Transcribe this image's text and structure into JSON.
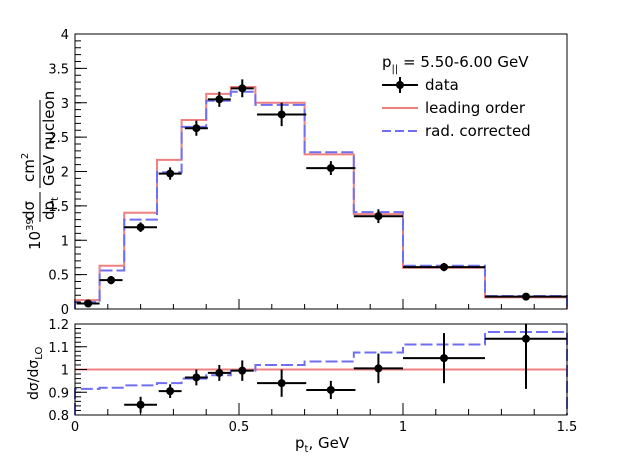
{
  "chart_data": [
    {
      "type": "line",
      "panel": "main",
      "title": "",
      "xlabel": "",
      "ylabel": "10^39 dσ/dp_t  cm²/GeV nucleon",
      "xlim": [
        0,
        1.5
      ],
      "ylim": [
        0,
        4
      ],
      "legend": {
        "header": "p_|| = 5.50-6.00 GeV",
        "placement": "top-right",
        "entries": [
          "data",
          "leading order",
          "rad. corrected"
        ]
      },
      "bin_edges": [
        0,
        0.075,
        0.15,
        0.25,
        0.325,
        0.4,
        0.475,
        0.55,
        0.7,
        0.85,
        1.0,
        1.25,
        1.5
      ],
      "series": [
        {
          "name": "data",
          "style": "points",
          "color": "#000000",
          "x": [
            0.04,
            0.11,
            0.2,
            0.29,
            0.37,
            0.44,
            0.51,
            0.63,
            0.78,
            0.925,
            1.125,
            1.375
          ],
          "y": [
            0.08,
            0.42,
            1.19,
            1.97,
            2.63,
            3.05,
            3.21,
            2.83,
            2.05,
            1.35,
            0.61,
            0.18
          ],
          "xerr": [
            0.035,
            0.035,
            0.05,
            0.035,
            0.035,
            0.035,
            0.035,
            0.075,
            0.075,
            0.075,
            0.125,
            0.125
          ],
          "yerr": [
            0.04,
            0.06,
            0.07,
            0.09,
            0.11,
            0.11,
            0.13,
            0.17,
            0.1,
            0.1,
            0.06,
            0.02
          ]
        },
        {
          "name": "leading order",
          "style": "step",
          "color": "#f08080",
          "values": [
            0.13,
            0.63,
            1.4,
            2.17,
            2.75,
            3.13,
            3.23,
            3.0,
            2.25,
            1.38,
            0.6,
            0.17
          ]
        },
        {
          "name": "rad. corrected",
          "style": "step-dashed",
          "color": "#6f6ff2",
          "values": [
            0.1,
            0.56,
            1.3,
            1.99,
            2.65,
            3.03,
            3.16,
            2.97,
            2.28,
            1.41,
            0.63,
            0.19
          ]
        }
      ],
      "yticks": [
        0,
        0.5,
        1,
        1.5,
        2,
        2.5,
        3,
        3.5,
        4
      ],
      "ytick_labels": [
        "0",
        "0.5",
        "1",
        "1.5",
        "2",
        "2.5",
        "3",
        "3.5",
        "4"
      ]
    },
    {
      "type": "line",
      "panel": "ratio",
      "xlabel": "p_t, GeV",
      "ylabel": "dσ/dσ_LO",
      "xlim": [
        0,
        1.5
      ],
      "ylim": [
        0.8,
        1.2
      ],
      "bin_edges": [
        0,
        0.075,
        0.15,
        0.25,
        0.325,
        0.4,
        0.475,
        0.55,
        0.7,
        0.85,
        1.0,
        1.25,
        1.5
      ],
      "series": [
        {
          "name": "data / LO",
          "style": "points",
          "color": "#000000",
          "x": [
            0.2,
            0.29,
            0.37,
            0.44,
            0.51,
            0.63,
            0.78,
            0.925,
            1.125,
            1.375
          ],
          "y": [
            0.845,
            0.905,
            0.965,
            0.985,
            0.995,
            0.94,
            0.91,
            1.005,
            1.05,
            1.135
          ],
          "xerr": [
            0.05,
            0.035,
            0.035,
            0.035,
            0.035,
            0.075,
            0.075,
            0.075,
            0.125,
            0.125
          ],
          "yerr": [
            0.035,
            0.03,
            0.035,
            0.035,
            0.045,
            0.06,
            0.04,
            0.065,
            0.11,
            0.22
          ]
        },
        {
          "name": "rad. corrected / LO",
          "style": "step-dashed",
          "color": "#6f6ff2",
          "values": [
            0.915,
            0.92,
            0.93,
            0.94,
            0.96,
            0.975,
            0.995,
            1.02,
            1.035,
            1.075,
            1.11,
            1.165
          ]
        },
        {
          "name": "leading order / LO",
          "style": "hline",
          "color": "#f08080",
          "value": 1.0
        }
      ],
      "yticks": [
        0.8,
        0.9,
        1.0,
        1.1,
        1.2
      ],
      "ytick_labels": [
        "0.8",
        "0.9",
        "1",
        "1.1",
        "1.2"
      ],
      "xticks": [
        0,
        0.5,
        1,
        1.5
      ],
      "xtick_labels": [
        "0",
        "0.5",
        "1",
        "1.5"
      ]
    }
  ],
  "labels": {
    "main_ylabel_prefix": "10",
    "main_ylabel_exp": "39",
    "main_ylabel_frac_num": "dσ",
    "main_ylabel_frac_den": "dp",
    "main_ylabel_frac_den_sub": "t",
    "main_ylabel_unit_num": "cm",
    "main_ylabel_unit_num_sup": "2",
    "main_ylabel_unit_den": "GeV nucleon",
    "ratio_ylabel_main": "dσ/dσ",
    "ratio_ylabel_sub": "LO",
    "xlabel_main": "p",
    "xlabel_sub": "t",
    "xlabel_unit": ", GeV",
    "legend_header_main": "p",
    "legend_header_sub": "||",
    "legend_header_value": " = 5.50-6.00 GeV"
  }
}
